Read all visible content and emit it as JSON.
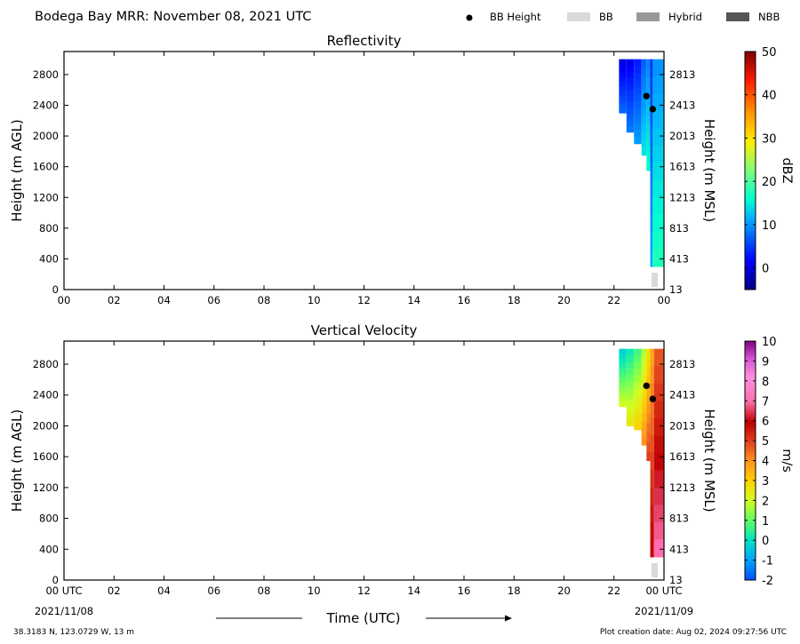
{
  "header": {
    "title": "Bodega Bay MRR:  November 08, 2021 UTC",
    "legend": [
      {
        "label": "BB Height",
        "kind": "dot",
        "color": "#000000"
      },
      {
        "label": "BB",
        "kind": "swatch",
        "color": "#d9d9d9"
      },
      {
        "label": "Hybrid",
        "kind": "swatch",
        "color": "#999999"
      },
      {
        "label": "NBB",
        "kind": "swatch",
        "color": "#555555"
      }
    ]
  },
  "footer": {
    "location": "38.3183 N, 123.0729 W, 13 m",
    "creation": "Plot creation date: Aug 02, 2024 09:27:56 UTC",
    "start_date": "2021/11/08",
    "end_date": "2021/11/09",
    "xlabel": "Time (UTC)"
  },
  "chart_data": [
    {
      "type": "heatmap",
      "title": "Reflectivity",
      "xlabel": "Time (UTC)",
      "ylabel": "Height (m AGL)",
      "y2label": "Height (m MSL)",
      "xlim": [
        0,
        24
      ],
      "ylim": [
        0,
        3100
      ],
      "x_ticks": [
        "00",
        "02",
        "04",
        "06",
        "08",
        "10",
        "12",
        "14",
        "16",
        "18",
        "20",
        "22",
        "00"
      ],
      "y_ticks": [
        "0",
        "400",
        "800",
        "1200",
        "1600",
        "2000",
        "2400",
        "2800"
      ],
      "y2_ticks": [
        "13",
        "413",
        "813",
        "1213",
        "1613",
        "2013",
        "2413",
        "2813"
      ],
      "colorbar": {
        "label": "dBZ",
        "min": -5,
        "max": 50,
        "ticks": [
          "0",
          "10",
          "20",
          "30",
          "40",
          "50"
        ]
      },
      "bb_height": [
        {
          "time": 23.3,
          "height": 2520
        },
        {
          "time": 23.55,
          "height": 2350
        }
      ],
      "bb_type": [
        {
          "start": 23.5,
          "end": 23.75,
          "type": "BB"
        }
      ],
      "data_region": {
        "start": 22.2,
        "end": 24.0,
        "top": 3000
      },
      "columns": [
        {
          "t0": 22.2,
          "t1": 22.5,
          "bottom": 2300,
          "value": 3
        },
        {
          "t0": 22.5,
          "t1": 22.8,
          "bottom": 2050,
          "value": 4
        },
        {
          "t0": 22.8,
          "t1": 23.1,
          "bottom": 1900,
          "value": 6
        },
        {
          "t0": 23.1,
          "t1": 23.3,
          "bottom": 1750,
          "value": 10
        },
        {
          "t0": 23.3,
          "t1": 23.45,
          "bottom": 1550,
          "value": 12
        },
        {
          "t0": 23.45,
          "t1": 23.55,
          "bottom": 300,
          "value": 7
        },
        {
          "t0": 23.55,
          "t1": 24.0,
          "bottom": 300,
          "value": 13
        }
      ]
    },
    {
      "type": "heatmap",
      "title": "Vertical Velocity",
      "xlabel": "Time (UTC)",
      "ylabel": "Height (m AGL)",
      "y2label": "Height (m MSL)",
      "xlim": [
        0,
        24
      ],
      "ylim": [
        0,
        3100
      ],
      "x_ticks": [
        "00 UTC",
        "02",
        "04",
        "06",
        "08",
        "10",
        "12",
        "14",
        "16",
        "18",
        "20",
        "22",
        "00 UTC"
      ],
      "y_ticks": [
        "0",
        "400",
        "800",
        "1200",
        "1600",
        "2000",
        "2400",
        "2800"
      ],
      "y2_ticks": [
        "13",
        "413",
        "813",
        "1213",
        "1613",
        "2013",
        "2413",
        "2813"
      ],
      "colorbar": {
        "label": "m/s",
        "min": -2,
        "max": 10,
        "ticks": [
          "-2",
          "-1",
          "0",
          "1",
          "2",
          "3",
          "4",
          "5",
          "6",
          "7",
          "8",
          "9",
          "10"
        ]
      },
      "bb_height": [
        {
          "time": 23.3,
          "height": 2520
        },
        {
          "time": 23.55,
          "height": 2350
        }
      ],
      "bb_type": [
        {
          "start": 23.5,
          "end": 23.75,
          "type": "BB"
        }
      ],
      "data_region": {
        "start": 22.2,
        "end": 24.0,
        "top": 3000
      },
      "columns": [
        {
          "t0": 22.2,
          "t1": 22.5,
          "bottom": 2250,
          "value": 0.5
        },
        {
          "t0": 22.5,
          "t1": 22.8,
          "bottom": 2000,
          "value": 1
        },
        {
          "t0": 22.8,
          "t1": 23.1,
          "bottom": 1950,
          "value": 1.5
        },
        {
          "t0": 23.1,
          "t1": 23.3,
          "bottom": 1750,
          "value": 2.5
        },
        {
          "t0": 23.3,
          "t1": 23.45,
          "bottom": 1550,
          "value": 3.5
        },
        {
          "t0": 23.45,
          "t1": 23.6,
          "bottom": 300,
          "value": 4.5
        },
        {
          "t0": 23.6,
          "t1": 24.0,
          "bottom": 300,
          "value": 5.5
        }
      ]
    }
  ]
}
